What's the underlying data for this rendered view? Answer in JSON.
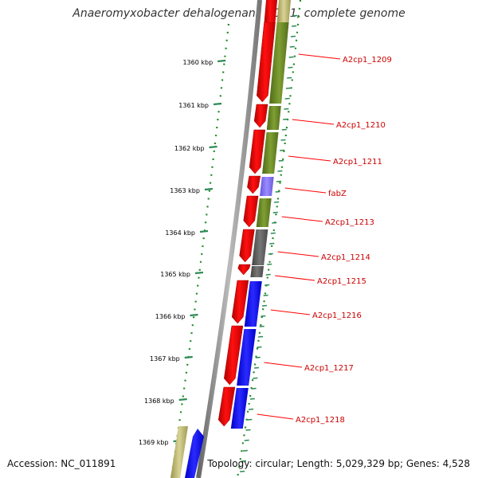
{
  "title": "Anaeromyxobacter dehalogenans 2CP-1, complete genome",
  "footer": {
    "accession": "Accession: NC_011891",
    "summary": "Topology: circular; Length: 5,029,329 bp; Genes: 4,528"
  },
  "scale": {
    "ticks": [
      "1360 kbp",
      "1361 kbp",
      "1362 kbp",
      "1363 kbp",
      "1364 kbp",
      "1365 kbp",
      "1366 kbp",
      "1367 kbp",
      "1368 kbp",
      "1369 kbp"
    ]
  },
  "genes": [
    {
      "label": "A2cp1_1209",
      "color": "#6b8e23"
    },
    {
      "label": "A2cp1_1210",
      "color": "#6b8e23"
    },
    {
      "label": "A2cp1_1211",
      "color": "#6b8e23"
    },
    {
      "label": "fabZ",
      "color": "#7b68ee"
    },
    {
      "label": "A2cp1_1213",
      "color": "#6b8e23"
    },
    {
      "label": "A2cp1_1214",
      "color": "#555555"
    },
    {
      "label": "A2cp1_1215",
      "color": "#555555"
    },
    {
      "label": "A2cp1_1216",
      "color": "#0000ff"
    },
    {
      "label": "A2cp1_1217",
      "color": "#0000ff"
    },
    {
      "label": "A2cp1_1218",
      "color": "#0000ff"
    }
  ],
  "colors": {
    "cds": "#ff0000",
    "olive": "#6b8e23",
    "khaki": "#bdb76b",
    "purple": "#7b68ee",
    "gray": "#555555",
    "blue": "#0000ff",
    "tick": "#2e8b57",
    "dots": "#228b22",
    "backbone": "#808080"
  }
}
